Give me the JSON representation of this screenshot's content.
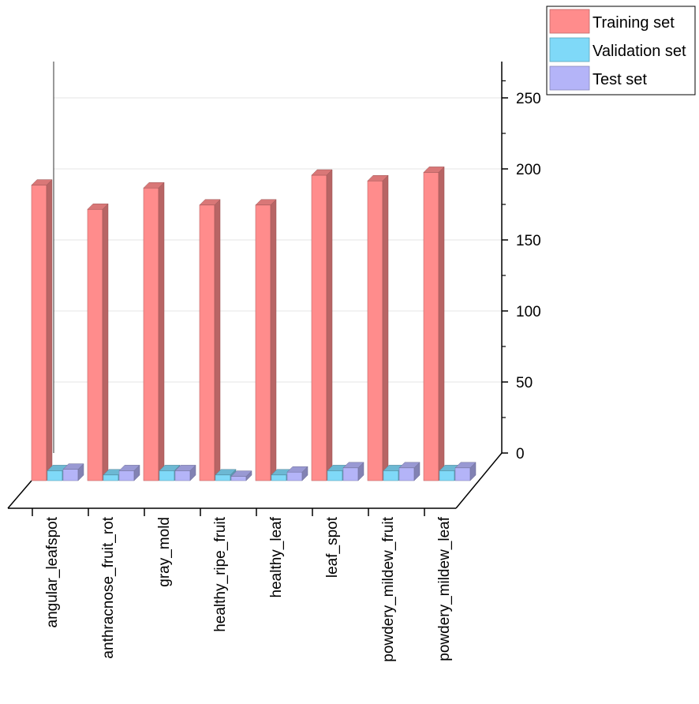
{
  "chart_data": {
    "type": "bar",
    "categories": [
      "angular_leafspot",
      "anthracnose_fruit_rot",
      "gray_mold",
      "healthy_ripe_fruit",
      "healthy_leaf",
      "leaf_spot",
      "powdery_mildew_fruit",
      "powdery_mildew_leaf"
    ],
    "series": [
      {
        "name": "Training set",
        "values": [
          208,
          191,
          206,
          194,
          194,
          215,
          211,
          217
        ],
        "color": "#ff8c8c"
      },
      {
        "name": "Validation set",
        "values": [
          7,
          4,
          7,
          4,
          4,
          7,
          7,
          7
        ],
        "color": "#7fd9f8"
      },
      {
        "name": "Test set",
        "values": [
          8,
          7,
          7,
          3,
          6,
          9,
          9,
          9
        ],
        "color": "#b4b4f8"
      }
    ],
    "y_ticks": [
      "0",
      "50",
      "100",
      "150",
      "200",
      "250"
    ],
    "ylim": [
      0,
      270
    ],
    "grid": true,
    "legend_position": "top-right",
    "style": "3d-bar"
  }
}
